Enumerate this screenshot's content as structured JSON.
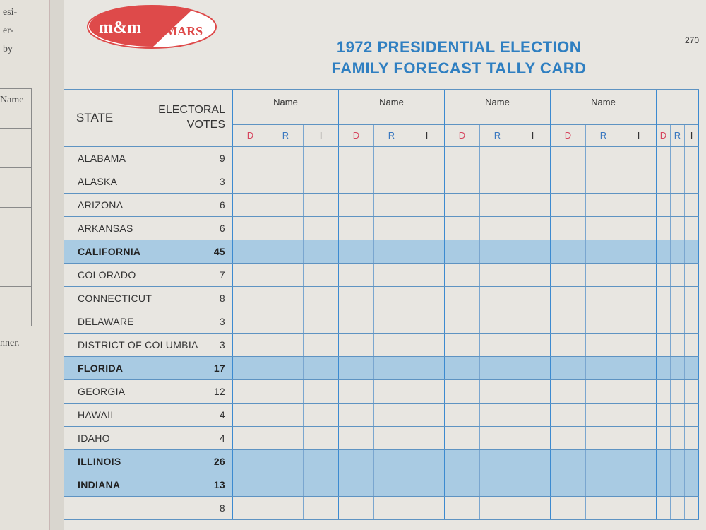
{
  "left_page": {
    "fragments": [
      "esi-",
      "er-",
      "by",
      "Name",
      "nner."
    ]
  },
  "card": {
    "logo_text": "m&m★MARS",
    "title_line1": "1972 PRESIDENTIAL ELECTION",
    "title_line2": "FAMILY FORECAST TALLY CARD",
    "topright": "270",
    "header": {
      "state": "STATE",
      "electoral_line1": "ELECTORAL",
      "electoral_line2": "VOTES"
    },
    "groups": [
      {
        "name": "Name"
      },
      {
        "name": "Name"
      },
      {
        "name": "Name"
      },
      {
        "name": "Name"
      },
      {
        "name": ""
      }
    ],
    "party_columns": [
      "D",
      "R",
      "I"
    ],
    "rows": [
      {
        "state": "ALABAMA",
        "votes": "9",
        "highlight": false
      },
      {
        "state": "ALASKA",
        "votes": "3",
        "highlight": false
      },
      {
        "state": "ARIZONA",
        "votes": "6",
        "highlight": false
      },
      {
        "state": "ARKANSAS",
        "votes": "6",
        "highlight": false
      },
      {
        "state": "CALIFORNIA",
        "votes": "45",
        "highlight": true
      },
      {
        "state": "COLORADO",
        "votes": "7",
        "highlight": false
      },
      {
        "state": "CONNECTICUT",
        "votes": "8",
        "highlight": false
      },
      {
        "state": "DELAWARE",
        "votes": "3",
        "highlight": false
      },
      {
        "state": "DISTRICT OF COLUMBIA",
        "votes": "3",
        "highlight": false
      },
      {
        "state": "FLORIDA",
        "votes": "17",
        "highlight": true
      },
      {
        "state": "GEORGIA",
        "votes": "12",
        "highlight": false
      },
      {
        "state": "HAWAII",
        "votes": "4",
        "highlight": false
      },
      {
        "state": "IDAHO",
        "votes": "4",
        "highlight": false
      },
      {
        "state": "ILLINOIS",
        "votes": "26",
        "highlight": true
      },
      {
        "state": "INDIANA",
        "votes": "13",
        "highlight": true
      },
      {
        "state": "",
        "votes": "8",
        "highlight": false
      }
    ]
  },
  "colors": {
    "grid": "#3c8ad0",
    "highlight": "#a9cbe3",
    "title": "#2f7fc1",
    "logo": "#de4a4a",
    "D": "#d6455e",
    "R": "#3a78c0"
  }
}
